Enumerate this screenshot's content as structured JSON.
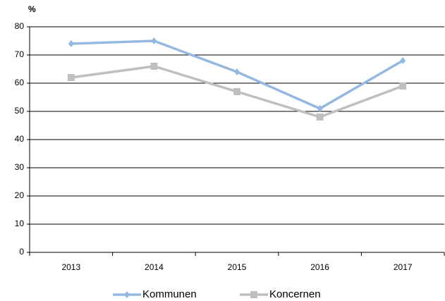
{
  "chart_data": {
    "type": "line",
    "y_label": "%",
    "categories": [
      "2013",
      "2014",
      "2015",
      "2016",
      "2017"
    ],
    "series": [
      {
        "name": "Kommunen",
        "color": "#95b8e0",
        "marker": "diamond",
        "values": [
          74,
          75,
          64,
          51,
          68
        ]
      },
      {
        "name": "Koncernen",
        "color": "#bfbfbf",
        "marker": "square",
        "values": [
          62,
          66,
          57,
          48,
          59
        ]
      }
    ],
    "ylim": [
      0,
      80
    ],
    "yticks": [
      0,
      10,
      20,
      30,
      40,
      50,
      60,
      70,
      80
    ],
    "grid": true,
    "legend": "bottom"
  }
}
